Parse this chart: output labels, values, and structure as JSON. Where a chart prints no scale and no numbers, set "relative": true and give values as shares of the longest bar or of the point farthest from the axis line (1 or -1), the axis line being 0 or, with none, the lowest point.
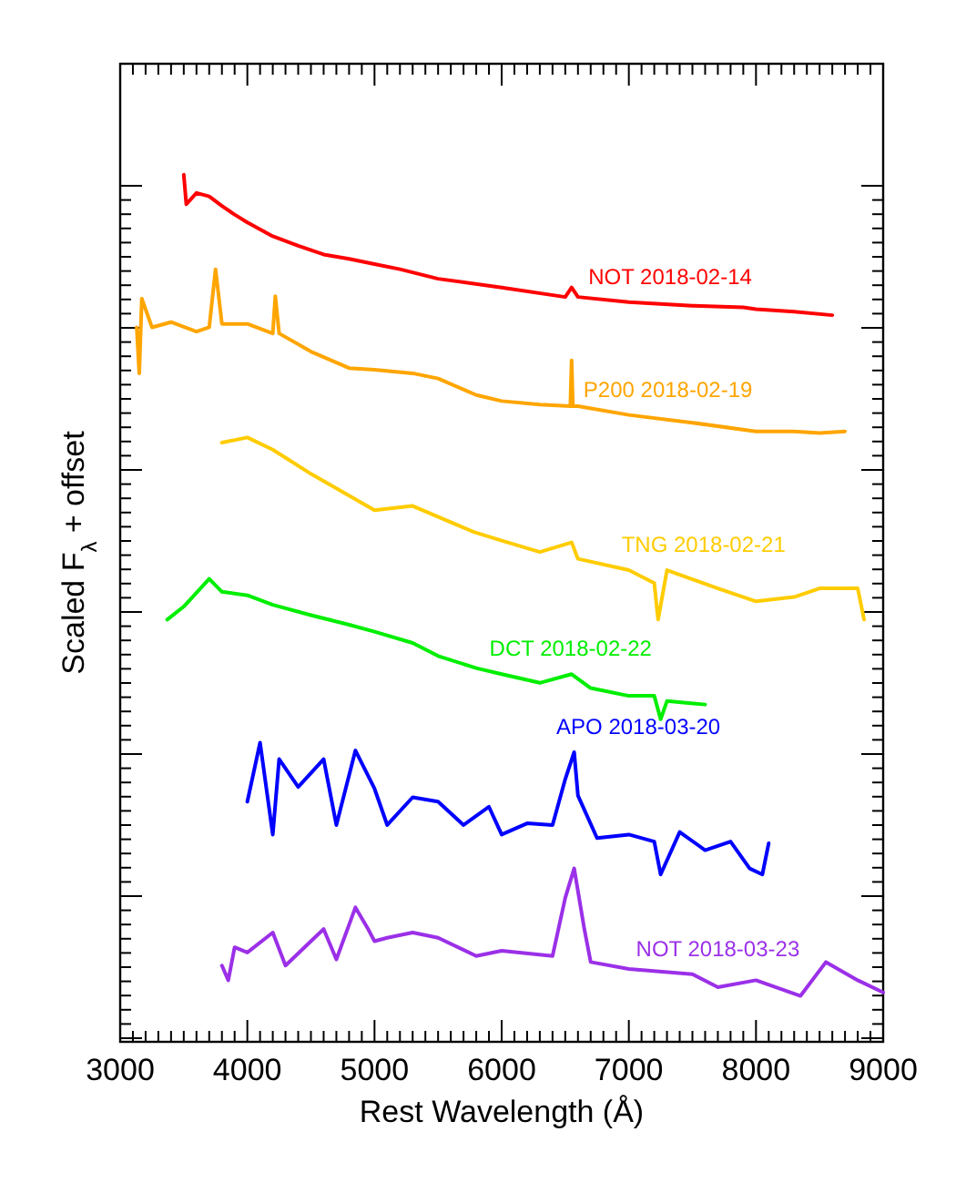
{
  "chart_data": {
    "type": "line",
    "relative": true,
    "xlabel": "Rest Wavelength (Å)",
    "ylabel": "Scaled F$_{λ}$ + offset",
    "xlim": [
      3000,
      9000
    ],
    "xticks": [
      3000,
      4000,
      5000,
      6000,
      7000,
      8000,
      9000
    ],
    "tick_labels": "x",
    "line_style": "solid",
    "series": [
      {
        "name": "NOT 2018-02-14",
        "color": "#ff0000",
        "x": [
          3500,
          3520,
          3600,
          3700,
          3800,
          3900,
          4000,
          4200,
          4400,
          4600,
          4800,
          5000,
          5200,
          5500,
          6000,
          6500,
          6550,
          6600,
          7000,
          7500,
          7900,
          8000,
          8300,
          8600
        ],
        "values": [
          1.0,
          0.966,
          0.979,
          0.975,
          0.964,
          0.954,
          0.945,
          0.929,
          0.918,
          0.908,
          0.903,
          0.897,
          0.891,
          0.88,
          0.87,
          0.859,
          0.87,
          0.859,
          0.853,
          0.849,
          0.847,
          0.845,
          0.842,
          0.838
        ]
      },
      {
        "name": "P200 2018-02-19",
        "color": "#ffa500",
        "x": [
          3130,
          3150,
          3170,
          3250,
          3400,
          3600,
          3700,
          3750,
          3800,
          4000,
          4200,
          4220,
          4250,
          4500,
          4800,
          5000,
          5300,
          5500,
          5800,
          6000,
          6300,
          6540,
          6550,
          6560,
          6600,
          7000,
          7500,
          8000,
          8300,
          8500,
          8700
        ],
        "values": [
          0.824,
          0.771,
          0.857,
          0.824,
          0.83,
          0.819,
          0.824,
          0.891,
          0.828,
          0.828,
          0.817,
          0.86,
          0.817,
          0.796,
          0.777,
          0.775,
          0.771,
          0.765,
          0.746,
          0.739,
          0.735,
          0.733,
          0.786,
          0.733,
          0.733,
          0.723,
          0.714,
          0.704,
          0.704,
          0.702,
          0.704
        ]
      },
      {
        "name": "TNG 2018-02-21",
        "color": "#ffcc00",
        "x": [
          3800,
          4000,
          4200,
          4500,
          4800,
          5000,
          5300,
          5780,
          6000,
          6300,
          6550,
          6600,
          7000,
          7200,
          7230,
          7300,
          7700,
          8000,
          8300,
          8500,
          8800,
          8850
        ],
        "values": [
          0.691,
          0.697,
          0.683,
          0.655,
          0.63,
          0.613,
          0.618,
          0.588,
          0.578,
          0.565,
          0.576,
          0.557,
          0.544,
          0.529,
          0.487,
          0.544,
          0.523,
          0.508,
          0.513,
          0.523,
          0.523,
          0.487
        ]
      },
      {
        "name": "DCT 2018-02-22",
        "color": "#00ee00",
        "x": [
          3370,
          3500,
          3700,
          3800,
          4000,
          4200,
          4500,
          4800,
          5000,
          5300,
          5500,
          5800,
          6000,
          6300,
          6550,
          6700,
          7000,
          7200,
          7250,
          7300,
          7600
        ],
        "values": [
          0.487,
          0.502,
          0.534,
          0.519,
          0.515,
          0.504,
          0.492,
          0.481,
          0.473,
          0.46,
          0.445,
          0.431,
          0.424,
          0.414,
          0.424,
          0.408,
          0.399,
          0.399,
          0.372,
          0.393,
          0.389
        ]
      },
      {
        "name": "APO 2018-03-20",
        "color": "#0000ff",
        "x": [
          4000,
          4100,
          4200,
          4250,
          4400,
          4600,
          4700,
          4850,
          5000,
          5100,
          5300,
          5500,
          5700,
          5900,
          6000,
          6200,
          6400,
          6500,
          6570,
          6600,
          6750,
          7000,
          7200,
          7250,
          7400,
          7600,
          7800,
          7950,
          8050,
          8100
        ],
        "values": [
          0.277,
          0.345,
          0.239,
          0.326,
          0.294,
          0.326,
          0.25,
          0.336,
          0.292,
          0.25,
          0.282,
          0.277,
          0.25,
          0.271,
          0.239,
          0.252,
          0.25,
          0.303,
          0.334,
          0.284,
          0.235,
          0.239,
          0.231,
          0.193,
          0.242,
          0.221,
          0.231,
          0.2,
          0.193,
          0.229
        ]
      },
      {
        "name": "NOT 2018-03-23",
        "color": "#9b30e8",
        "x": [
          3800,
          3850,
          3900,
          4000,
          4200,
          4300,
          4500,
          4600,
          4700,
          4850,
          4950,
          5000,
          5100,
          5300,
          5500,
          5800,
          6000,
          6400,
          6500,
          6570,
          6650,
          6700,
          7000,
          7500,
          7700,
          8000,
          8350,
          8550,
          8800,
          9000
        ],
        "values": [
          0.088,
          0.071,
          0.109,
          0.103,
          0.126,
          0.088,
          0.116,
          0.13,
          0.095,
          0.155,
          0.13,
          0.116,
          0.12,
          0.126,
          0.12,
          0.099,
          0.105,
          0.099,
          0.166,
          0.2,
          0.13,
          0.092,
          0.084,
          0.078,
          0.063,
          0.071,
          0.053,
          0.092,
          0.071,
          0.057
        ]
      }
    ]
  }
}
